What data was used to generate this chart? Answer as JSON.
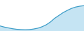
{
  "x": [
    0,
    1,
    2,
    3,
    4,
    5,
    6,
    7,
    8,
    9,
    10,
    11,
    12,
    13,
    14,
    15,
    16,
    17,
    18,
    19,
    20
  ],
  "y": [
    1.8,
    1.4,
    1.1,
    0.8,
    0.6,
    0.5,
    0.45,
    0.5,
    0.7,
    1.0,
    1.5,
    2.2,
    3.2,
    4.5,
    5.5,
    6.5,
    7.3,
    8.0,
    8.5,
    8.8,
    9.0
  ],
  "line_color": "#3d9dc8",
  "fill_color": "#c5e4f3",
  "background_color": "#ffffff",
  "ylim": [
    0,
    11
  ],
  "xlim": [
    0,
    20
  ]
}
